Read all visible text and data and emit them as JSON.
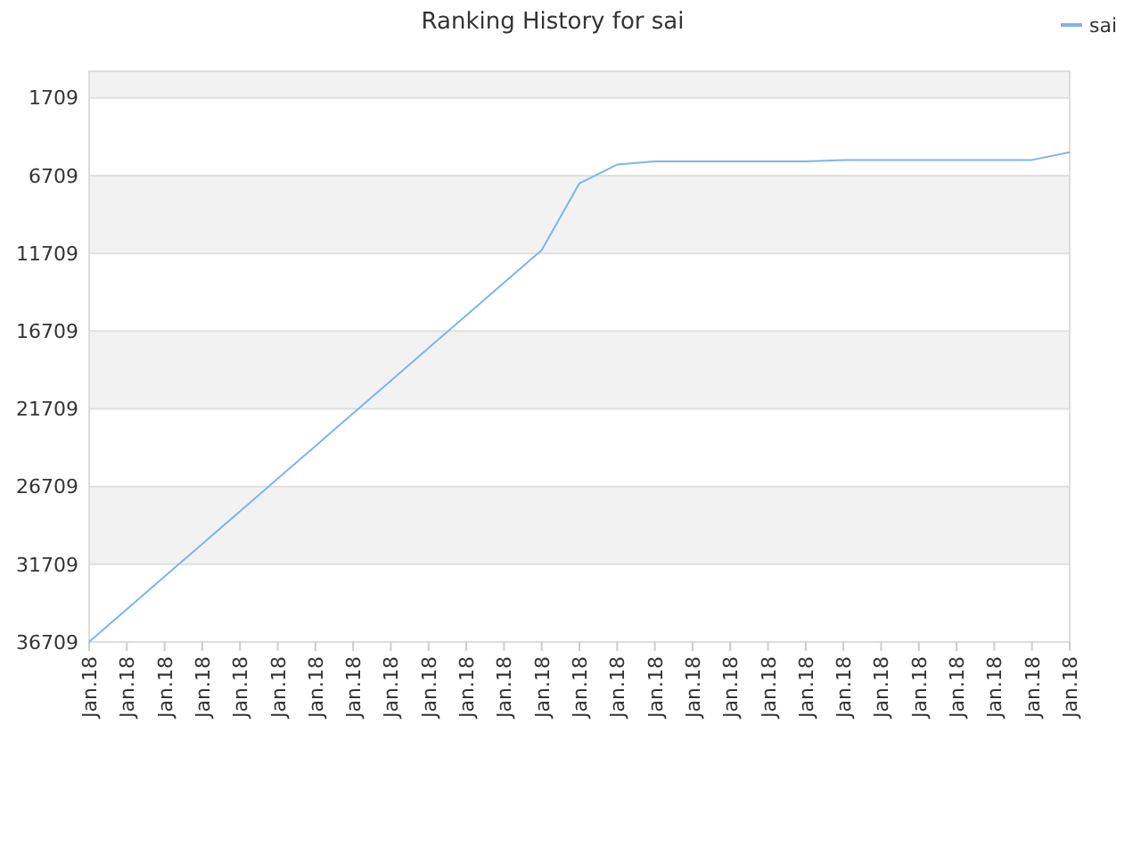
{
  "chart_data": {
    "type": "line",
    "title": "Ranking History for sai",
    "categories": [
      "Jan.18",
      "Jan.18",
      "Jan.18",
      "Jan.18",
      "Jan.18",
      "Jan.18",
      "Jan.18",
      "Jan.18",
      "Jan.18",
      "Jan.18",
      "Jan.18",
      "Jan.18",
      "Jan.18",
      "Jan.18",
      "Jan.18",
      "Jan.18",
      "Jan.18",
      "Jan.18",
      "Jan.18",
      "Jan.18",
      "Jan.18",
      "Jan.18",
      "Jan.18",
      "Jan.18",
      "Jan.18",
      "Jan.18",
      "Jan.18"
    ],
    "ylim": [
      36709,
      0
    ],
    "yticks": [
      1709,
      6709,
      11709,
      16709,
      21709,
      26709,
      31709,
      36709
    ],
    "grid": "y",
    "legend": "top right",
    "series": [
      {
        "name": "sai",
        "color": "#7cb5ec",
        "values": [
          36700,
          34600,
          32500,
          30400,
          28300,
          26200,
          24100,
          22000,
          19900,
          17800,
          15700,
          13600,
          11500,
          7200,
          6000,
          5800,
          5800,
          5800,
          5800,
          5800,
          5700,
          5700,
          5700,
          5700,
          5700,
          5700,
          5200
        ]
      }
    ]
  }
}
